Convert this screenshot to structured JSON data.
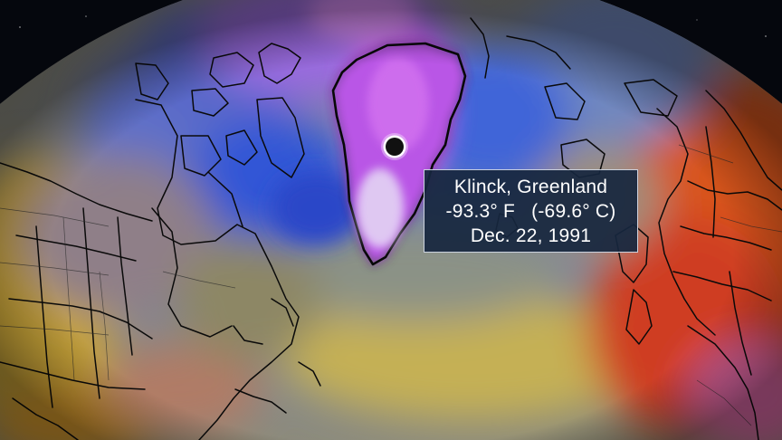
{
  "annotation": {
    "location": "Klinck, Greenland",
    "temperature": "-93.3° F   (-69.6° C)",
    "date": "Dec. 22, 1991"
  },
  "marker": {
    "icon": "location-dot-icon",
    "color": "#111111",
    "ring_color": "#ffffff"
  },
  "colors": {
    "space": "#05070d",
    "extreme_cold": "#d566ee",
    "very_cold": "#3f5fd6",
    "cold": "#6a8fd8",
    "cool": "#8c8f7e",
    "mild": "#c2a94a",
    "warm": "#e07a22",
    "hot": "#c8361c",
    "callout_bg": "#17273e"
  }
}
